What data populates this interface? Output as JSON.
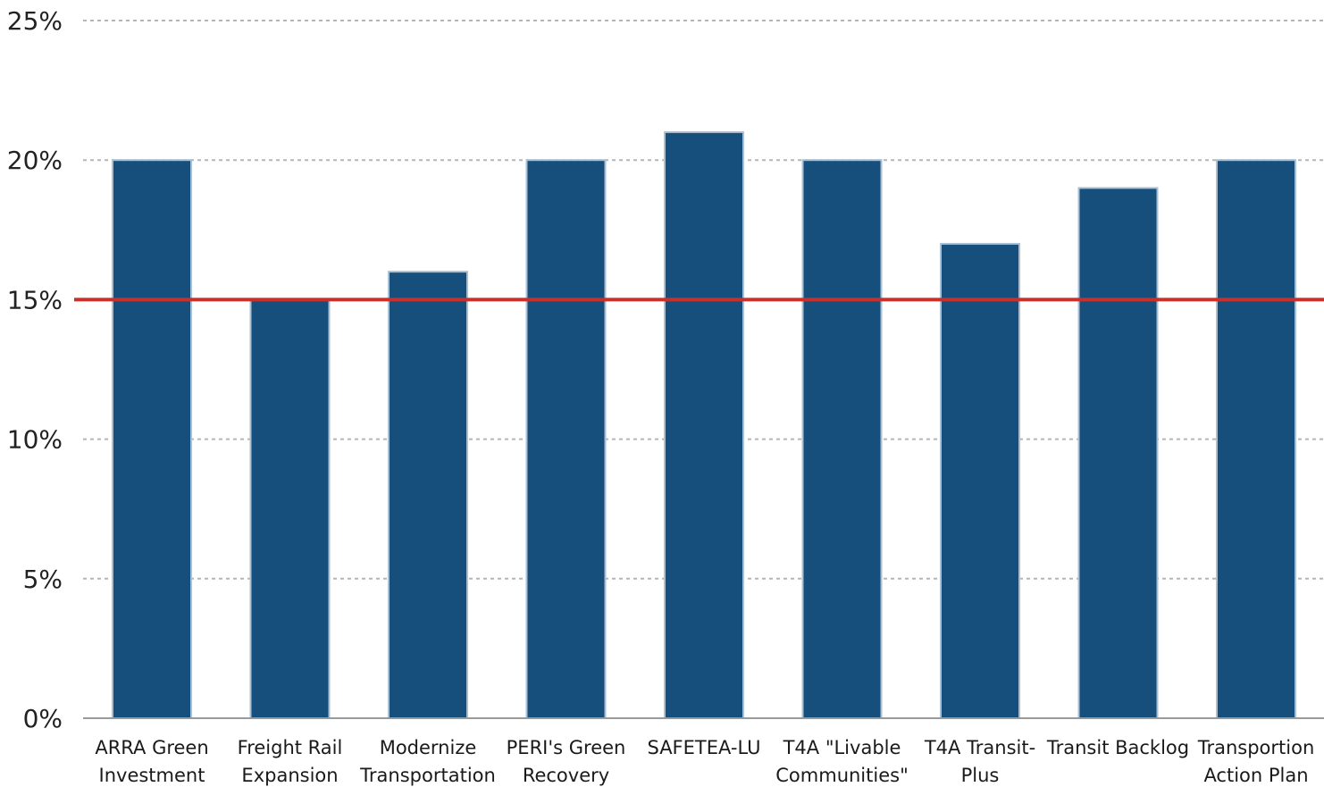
{
  "chart_data": {
    "type": "bar",
    "title": "",
    "xlabel": "",
    "ylabel": "",
    "categories": [
      [
        "ARRA Green",
        "Investment"
      ],
      [
        "Freight Rail",
        "Expansion"
      ],
      [
        "Modernize",
        "Transportation"
      ],
      [
        "PERI's Green",
        "Recovery"
      ],
      [
        "SAFETEA-LU"
      ],
      [
        "T4A \"Livable",
        "Communities\""
      ],
      [
        "T4A Transit-",
        "Plus"
      ],
      [
        "Transit Backlog"
      ],
      [
        "Transportion",
        "Action Plan"
      ]
    ],
    "values": [
      20,
      15,
      16,
      20,
      21,
      20,
      17,
      19,
      20
    ],
    "ylim": [
      0,
      25
    ],
    "yticks": [
      0,
      5,
      10,
      15,
      20,
      25
    ],
    "ytick_labels": [
      "0%",
      "5%",
      "10%",
      "15%",
      "20%",
      "25%"
    ],
    "reference_line": 15,
    "grid": true,
    "legend": "none",
    "colors": {
      "bar": "#174f7c",
      "reference_line": "#c8302c",
      "grid": "#b5b5b5",
      "axis": "#9a9a9a"
    }
  }
}
